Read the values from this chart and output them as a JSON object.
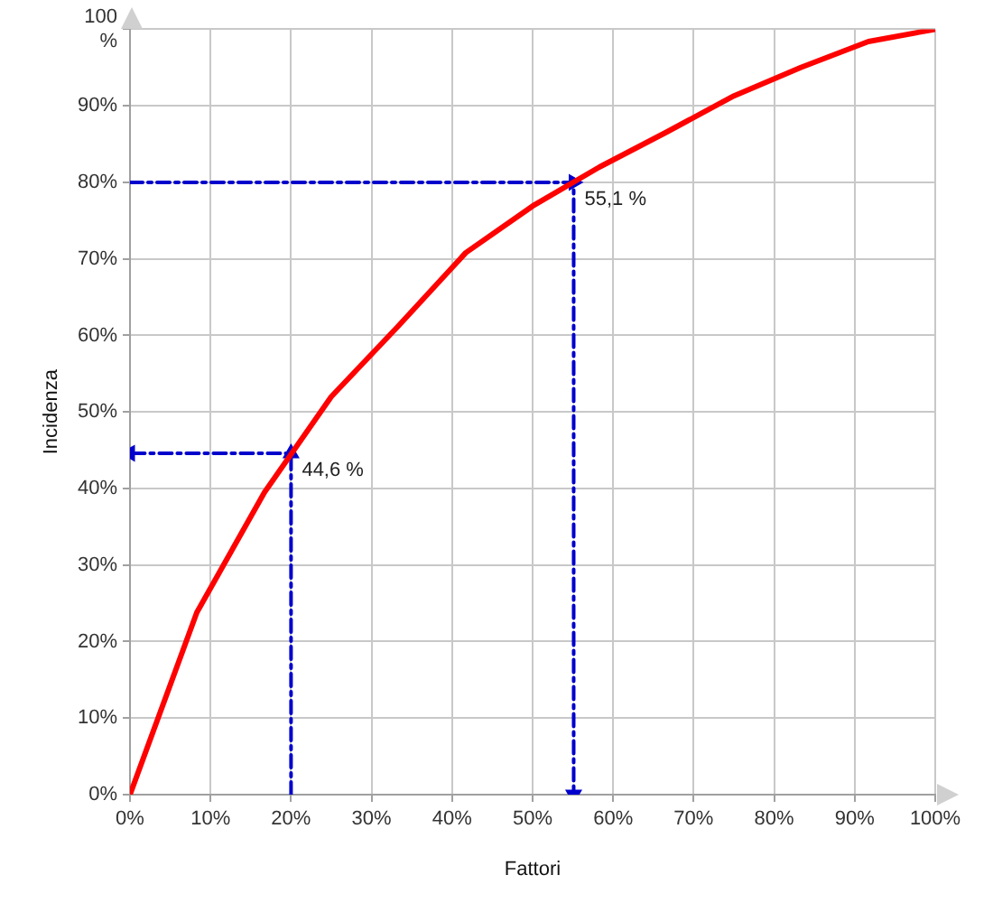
{
  "chart_data": {
    "type": "line",
    "xlabel": "Fattori",
    "ylabel": "Incidenza",
    "xlim": [
      0,
      100
    ],
    "ylim": [
      0,
      100
    ],
    "xticks": [
      {
        "value": 0,
        "label": "0%"
      },
      {
        "value": 10,
        "label": "10%"
      },
      {
        "value": 20,
        "label": "20%"
      },
      {
        "value": 30,
        "label": "30%"
      },
      {
        "value": 40,
        "label": "40%"
      },
      {
        "value": 50,
        "label": "50%"
      },
      {
        "value": 60,
        "label": "60%"
      },
      {
        "value": 70,
        "label": "70%"
      },
      {
        "value": 80,
        "label": "80%"
      },
      {
        "value": 90,
        "label": "90%"
      },
      {
        "value": 100,
        "label": "100%"
      }
    ],
    "yticks": [
      {
        "value": 0,
        "label": "0%"
      },
      {
        "value": 10,
        "label": "10%"
      },
      {
        "value": 20,
        "label": "20%"
      },
      {
        "value": 30,
        "label": "30%"
      },
      {
        "value": 40,
        "label": "40%"
      },
      {
        "value": 50,
        "label": "50%"
      },
      {
        "value": 60,
        "label": "60%"
      },
      {
        "value": 70,
        "label": "70%"
      },
      {
        "value": 80,
        "label": "80%"
      },
      {
        "value": 90,
        "label": "90%"
      },
      {
        "value": 100,
        "label": "100 %"
      }
    ],
    "grid": true,
    "legend": false,
    "marker": "none",
    "line_style": "solid",
    "series": [
      {
        "color": "#ff0000",
        "x": [
          0,
          8.3,
          16.7,
          25,
          33.3,
          41.7,
          50,
          58.3,
          66.7,
          75,
          83.3,
          91.7,
          100
        ],
        "values": [
          0,
          23.8,
          39.5,
          52,
          61.2,
          70.8,
          76.9,
          82,
          86.6,
          91.3,
          95,
          98.4,
          100
        ]
      },
      {
        "color": "#0000cc",
        "x": [
          0,
          55.1,
          55.1
        ],
        "values": [
          80,
          80,
          0
        ],
        "marker": "triangle",
        "line_style": "dashed"
      },
      {
        "color": "#0000cc",
        "x": [
          20,
          20,
          0
        ],
        "values": [
          0,
          44.6,
          44.6
        ],
        "marker": "triangle",
        "line_style": "dashed"
      }
    ],
    "annotations": [
      {
        "text": "55,1 %",
        "x": 55.1,
        "y": 80
      },
      {
        "text": "44,6 %",
        "x": 20,
        "y": 44.6
      }
    ]
  }
}
